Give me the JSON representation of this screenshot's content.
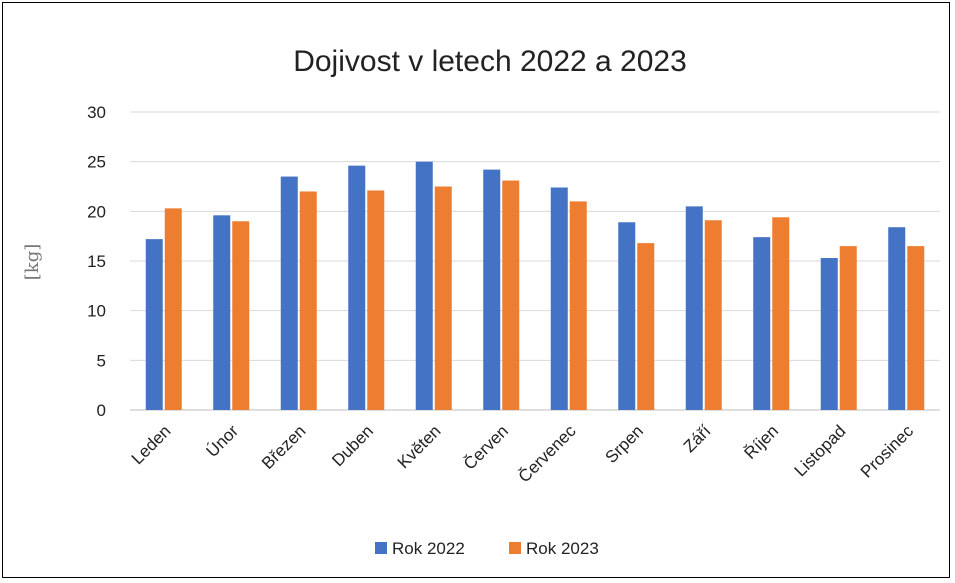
{
  "chart_data": {
    "type": "bar",
    "title": "Dojivost v letech 2022 a 2023",
    "ylabel": "[kg]",
    "xlabel": "",
    "ylim": [
      0,
      30
    ],
    "yticks": [
      0,
      5,
      10,
      15,
      20,
      25,
      30
    ],
    "grid": true,
    "legend_position": "bottom",
    "categories": [
      "Leden",
      "Únor",
      "Březen",
      "Duben",
      "Květen",
      "Červen",
      "Červenec",
      "Srpen",
      "Září",
      "Říjen",
      "Listopad",
      "Prosinec"
    ],
    "series": [
      {
        "name": "Rok 2022",
        "color": "#4472C4",
        "values": [
          17.2,
          19.6,
          23.5,
          24.6,
          25.0,
          24.2,
          22.4,
          18.9,
          20.5,
          17.4,
          15.3,
          18.4
        ]
      },
      {
        "name": "Rok 2023",
        "color": "#ED7D31",
        "values": [
          20.3,
          19.0,
          22.0,
          22.1,
          22.5,
          23.1,
          21.0,
          16.8,
          19.1,
          19.4,
          16.5,
          16.5
        ]
      }
    ]
  }
}
